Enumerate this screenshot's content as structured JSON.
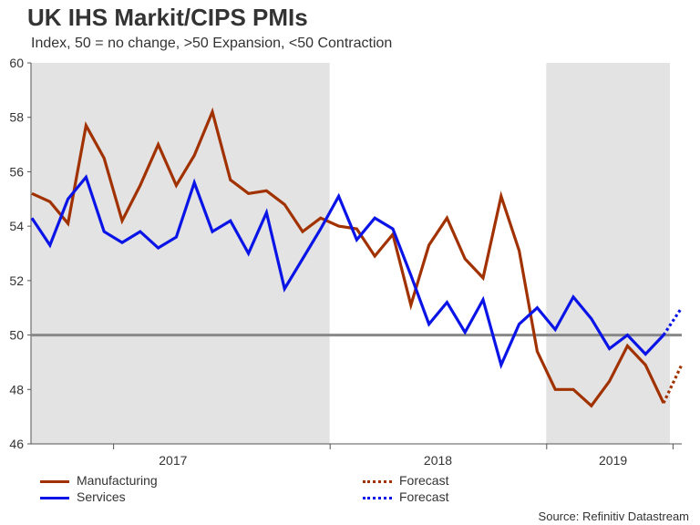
{
  "title": "UK IHS Markit/CIPS PMIs",
  "subtitle": "Index, 50 = no change, >50 Expansion, <50 Contraction",
  "source": "Source: Refinitiv Datastream",
  "colors": {
    "manufacturing": "#A13200",
    "services": "#0A14E6",
    "shade": "#E3E3E3",
    "reference": "#888888"
  },
  "chart_data": {
    "type": "line",
    "title": "UK IHS Markit/CIPS PMIs",
    "subtitle": "Index, 50 = no change, >50 Expansion, <50 Contraction",
    "ylim": [
      46,
      60
    ],
    "yticks": [
      46,
      48,
      50,
      52,
      54,
      56,
      58,
      60
    ],
    "ytick_labels": [
      "46",
      "48",
      "50",
      "52",
      "54",
      "56",
      "58",
      "60"
    ],
    "x_months": [
      "2016-08",
      "2016-09",
      "2016-10",
      "2016-11",
      "2016-12",
      "2017-01",
      "2017-02",
      "2017-03",
      "2017-04",
      "2017-05",
      "2017-06",
      "2017-07",
      "2017-08",
      "2017-09",
      "2017-10",
      "2017-11",
      "2017-12",
      "2018-01",
      "2018-02",
      "2018-03",
      "2018-04",
      "2018-05",
      "2018-06",
      "2018-07",
      "2018-08",
      "2018-09",
      "2018-10",
      "2018-11",
      "2018-12",
      "2019-01",
      "2019-02",
      "2019-03",
      "2019-04",
      "2019-05",
      "2019-06",
      "2019-07",
      "2019-08"
    ],
    "year_labels": [
      "2017",
      "2018",
      "2019"
    ],
    "shaded_years": [
      "2017",
      "2019"
    ],
    "reference_line": 50,
    "series": [
      {
        "name": "Manufacturing",
        "style": "solid",
        "values": [
          55.2,
          54.9,
          54.1,
          57.7,
          56.5,
          54.2,
          55.5,
          57.0,
          55.5,
          56.6,
          58.2,
          55.7,
          55.2,
          55.3,
          54.8,
          53.8,
          54.3,
          54.0,
          53.9,
          52.9,
          53.7,
          51.1,
          53.3,
          54.3,
          52.8,
          52.1,
          55.1,
          53.1,
          49.4,
          48.0,
          48.0,
          47.4,
          48.3,
          49.6,
          48.9,
          47.5
        ]
      },
      {
        "name": "Services",
        "style": "solid",
        "values": [
          54.3,
          53.3,
          55.0,
          55.8,
          53.8,
          53.4,
          53.8,
          53.2,
          53.6,
          55.6,
          53.8,
          54.2,
          53.0,
          54.5,
          51.7,
          52.8,
          53.9,
          55.1,
          53.5,
          54.3,
          53.9,
          52.2,
          50.4,
          51.2,
          50.1,
          51.3,
          48.9,
          50.4,
          51.0,
          50.2,
          51.4,
          50.6,
          49.5,
          50.0,
          49.3,
          50.0
        ]
      },
      {
        "name": "Forecast",
        "style": "dotted",
        "base": "Manufacturing",
        "values": [
          47.5,
          48.9
        ]
      },
      {
        "name": "Forecast",
        "style": "dotted",
        "base": "Services",
        "values": [
          50.0,
          51.0
        ]
      }
    ],
    "legend": [
      {
        "label": "Manufacturing",
        "style": "solid",
        "series": "Manufacturing"
      },
      {
        "label": "Forecast",
        "style": "dotted",
        "series": "Manufacturing"
      },
      {
        "label": "Services",
        "style": "solid",
        "series": "Services"
      },
      {
        "label": "Forecast",
        "style": "dotted",
        "series": "Services"
      }
    ]
  }
}
